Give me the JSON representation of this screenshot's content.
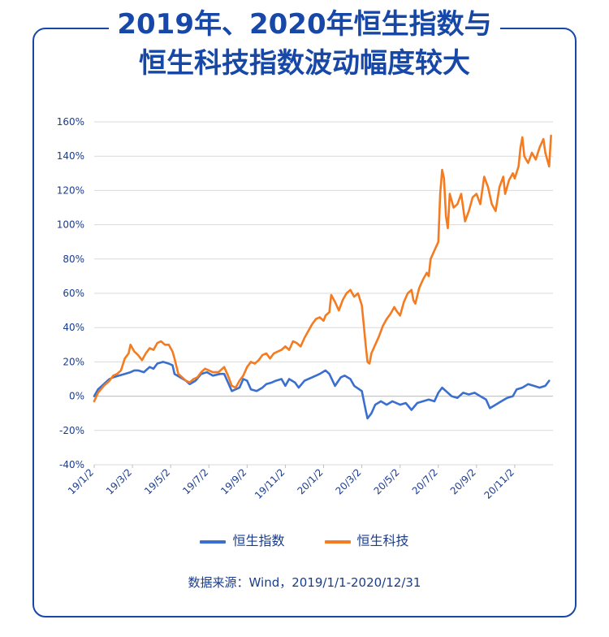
{
  "title_lines": [
    "2019年、2020年恒生指数与",
    "恒生科技指数波动幅度较大"
  ],
  "colors": {
    "frame": "#1748a8",
    "title": "#1748a8",
    "text": "#1a3c8c",
    "grid": "#d9d9d9"
  },
  "source": "数据来源：Wind，2019/1/1-2020/12/31",
  "chart_data": {
    "type": "line",
    "title": "2019年、2020年恒生指数与恒生科技指数波动幅度较大",
    "xlabel": "",
    "ylabel": "",
    "ylim": [
      -40,
      160
    ],
    "yticks": [
      -40,
      -20,
      0,
      20,
      40,
      60,
      80,
      100,
      120,
      140,
      160
    ],
    "ytick_labels": [
      "-40%",
      "-20%",
      "0%",
      "20%",
      "40%",
      "60%",
      "80%",
      "100%",
      "120%",
      "140%",
      "160%"
    ],
    "x_tick_labels": [
      "19/1/2",
      "19/3/2",
      "19/5/2",
      "19/7/2",
      "19/9/2",
      "19/11/2",
      "20/1/2",
      "20/3/2",
      "20/5/2",
      "20/7/2",
      "20/9/2",
      "20/11/2"
    ],
    "x_tick_positions": [
      0,
      2,
      4,
      6,
      8,
      10,
      12,
      14,
      16,
      18,
      20,
      22
    ],
    "x_range_months": [
      0,
      24
    ],
    "legend_position": "bottom",
    "grid": true,
    "series": [
      {
        "name": "恒生指数",
        "color": "#3a6fd0",
        "points": [
          [
            0,
            0
          ],
          [
            0.2,
            4
          ],
          [
            0.5,
            7
          ],
          [
            0.8,
            10
          ],
          [
            1.0,
            11
          ],
          [
            1.3,
            12
          ],
          [
            1.6,
            13
          ],
          [
            1.9,
            14
          ],
          [
            2.1,
            15
          ],
          [
            2.3,
            15
          ],
          [
            2.6,
            14
          ],
          [
            2.9,
            17
          ],
          [
            3.1,
            16
          ],
          [
            3.3,
            19
          ],
          [
            3.6,
            20
          ],
          [
            3.9,
            19
          ],
          [
            4.1,
            18
          ],
          [
            4.2,
            13
          ],
          [
            4.5,
            11
          ],
          [
            4.8,
            9
          ],
          [
            5.0,
            7
          ],
          [
            5.3,
            9
          ],
          [
            5.6,
            13
          ],
          [
            5.9,
            14
          ],
          [
            6.2,
            12
          ],
          [
            6.6,
            13
          ],
          [
            6.8,
            13
          ],
          [
            7.0,
            8
          ],
          [
            7.2,
            3
          ],
          [
            7.4,
            4
          ],
          [
            7.6,
            5
          ],
          [
            7.8,
            10
          ],
          [
            8.0,
            9
          ],
          [
            8.2,
            4
          ],
          [
            8.5,
            3
          ],
          [
            8.8,
            5
          ],
          [
            9.0,
            7
          ],
          [
            9.3,
            8
          ],
          [
            9.5,
            9
          ],
          [
            9.8,
            10
          ],
          [
            10.0,
            6
          ],
          [
            10.2,
            10
          ],
          [
            10.5,
            8
          ],
          [
            10.7,
            5
          ],
          [
            11.0,
            9
          ],
          [
            11.4,
            11
          ],
          [
            11.8,
            13
          ],
          [
            12.1,
            15
          ],
          [
            12.3,
            13
          ],
          [
            12.6,
            6
          ],
          [
            12.9,
            11
          ],
          [
            13.1,
            12
          ],
          [
            13.4,
            10
          ],
          [
            13.6,
            6
          ],
          [
            14.0,
            3
          ],
          [
            14.2,
            -8
          ],
          [
            14.3,
            -13
          ],
          [
            14.5,
            -10
          ],
          [
            14.7,
            -5
          ],
          [
            15.0,
            -3
          ],
          [
            15.3,
            -5
          ],
          [
            15.6,
            -3
          ],
          [
            16.0,
            -5
          ],
          [
            16.3,
            -4
          ],
          [
            16.6,
            -8
          ],
          [
            16.9,
            -4
          ],
          [
            17.2,
            -3
          ],
          [
            17.5,
            -2
          ],
          [
            17.8,
            -3
          ],
          [
            18.0,
            2
          ],
          [
            18.2,
            5
          ],
          [
            18.4,
            3
          ],
          [
            18.7,
            0
          ],
          [
            19.0,
            -1
          ],
          [
            19.3,
            2
          ],
          [
            19.6,
            1
          ],
          [
            19.9,
            2
          ],
          [
            20.2,
            0
          ],
          [
            20.5,
            -2
          ],
          [
            20.7,
            -7
          ],
          [
            21.0,
            -5
          ],
          [
            21.3,
            -3
          ],
          [
            21.6,
            -1
          ],
          [
            21.9,
            0
          ],
          [
            22.1,
            4
          ],
          [
            22.4,
            5
          ],
          [
            22.7,
            7
          ],
          [
            23.0,
            6
          ],
          [
            23.3,
            5
          ],
          [
            23.6,
            6
          ],
          [
            23.8,
            9
          ]
        ]
      },
      {
        "name": "恒生科技",
        "color": "#f47b20",
        "points": [
          [
            0,
            -3
          ],
          [
            0.2,
            2
          ],
          [
            0.5,
            6
          ],
          [
            0.8,
            9
          ],
          [
            1.0,
            12
          ],
          [
            1.2,
            13
          ],
          [
            1.4,
            15
          ],
          [
            1.6,
            22
          ],
          [
            1.8,
            25
          ],
          [
            1.9,
            30
          ],
          [
            2.1,
            26
          ],
          [
            2.3,
            24
          ],
          [
            2.5,
            21
          ],
          [
            2.7,
            25
          ],
          [
            2.9,
            28
          ],
          [
            3.1,
            27
          ],
          [
            3.3,
            31
          ],
          [
            3.5,
            32
          ],
          [
            3.7,
            30
          ],
          [
            3.9,
            30
          ],
          [
            4.1,
            26
          ],
          [
            4.2,
            22
          ],
          [
            4.4,
            13
          ],
          [
            4.6,
            11
          ],
          [
            4.8,
            9
          ],
          [
            5.0,
            8
          ],
          [
            5.2,
            10
          ],
          [
            5.4,
            11
          ],
          [
            5.6,
            14
          ],
          [
            5.8,
            16
          ],
          [
            6.0,
            15
          ],
          [
            6.2,
            14
          ],
          [
            6.5,
            14
          ],
          [
            6.8,
            17
          ],
          [
            7.0,
            12
          ],
          [
            7.2,
            6
          ],
          [
            7.4,
            5
          ],
          [
            7.6,
            9
          ],
          [
            7.8,
            12
          ],
          [
            8.0,
            17
          ],
          [
            8.2,
            20
          ],
          [
            8.4,
            19
          ],
          [
            8.6,
            21
          ],
          [
            8.8,
            24
          ],
          [
            9.0,
            25
          ],
          [
            9.2,
            22
          ],
          [
            9.4,
            25
          ],
          [
            9.6,
            26
          ],
          [
            9.8,
            27
          ],
          [
            10.0,
            29
          ],
          [
            10.2,
            27
          ],
          [
            10.4,
            32
          ],
          [
            10.6,
            31
          ],
          [
            10.8,
            29
          ],
          [
            11.0,
            34
          ],
          [
            11.2,
            38
          ],
          [
            11.4,
            42
          ],
          [
            11.6,
            45
          ],
          [
            11.8,
            46
          ],
          [
            12.0,
            44
          ],
          [
            12.1,
            47
          ],
          [
            12.3,
            49
          ],
          [
            12.4,
            59
          ],
          [
            12.6,
            55
          ],
          [
            12.8,
            50
          ],
          [
            13.0,
            56
          ],
          [
            13.2,
            60
          ],
          [
            13.4,
            62
          ],
          [
            13.6,
            58
          ],
          [
            13.8,
            60
          ],
          [
            14.0,
            53
          ],
          [
            14.1,
            42
          ],
          [
            14.2,
            30
          ],
          [
            14.3,
            20
          ],
          [
            14.4,
            19
          ],
          [
            14.5,
            25
          ],
          [
            14.7,
            30
          ],
          [
            14.9,
            35
          ],
          [
            15.1,
            41
          ],
          [
            15.3,
            45
          ],
          [
            15.5,
            48
          ],
          [
            15.7,
            52
          ],
          [
            15.8,
            50
          ],
          [
            16.0,
            47
          ],
          [
            16.2,
            55
          ],
          [
            16.4,
            60
          ],
          [
            16.6,
            62
          ],
          [
            16.7,
            56
          ],
          [
            16.8,
            54
          ],
          [
            17.0,
            63
          ],
          [
            17.2,
            68
          ],
          [
            17.4,
            72
          ],
          [
            17.5,
            70
          ],
          [
            17.6,
            80
          ],
          [
            17.8,
            85
          ],
          [
            18.0,
            90
          ],
          [
            18.1,
            118
          ],
          [
            18.2,
            132
          ],
          [
            18.3,
            127
          ],
          [
            18.4,
            105
          ],
          [
            18.5,
            98
          ],
          [
            18.6,
            118
          ],
          [
            18.8,
            110
          ],
          [
            19.0,
            112
          ],
          [
            19.2,
            118
          ],
          [
            19.4,
            102
          ],
          [
            19.6,
            108
          ],
          [
            19.8,
            116
          ],
          [
            20.0,
            118
          ],
          [
            20.2,
            112
          ],
          [
            20.4,
            128
          ],
          [
            20.6,
            122
          ],
          [
            20.8,
            112
          ],
          [
            21.0,
            108
          ],
          [
            21.2,
            122
          ],
          [
            21.4,
            128
          ],
          [
            21.5,
            118
          ],
          [
            21.7,
            126
          ],
          [
            21.9,
            130
          ],
          [
            22.0,
            127
          ],
          [
            22.2,
            134
          ],
          [
            22.3,
            145
          ],
          [
            22.4,
            151
          ],
          [
            22.5,
            140
          ],
          [
            22.7,
            136
          ],
          [
            22.9,
            142
          ],
          [
            23.1,
            138
          ],
          [
            23.3,
            145
          ],
          [
            23.5,
            150
          ],
          [
            23.6,
            142
          ],
          [
            23.8,
            134
          ],
          [
            23.9,
            152
          ]
        ]
      }
    ]
  }
}
